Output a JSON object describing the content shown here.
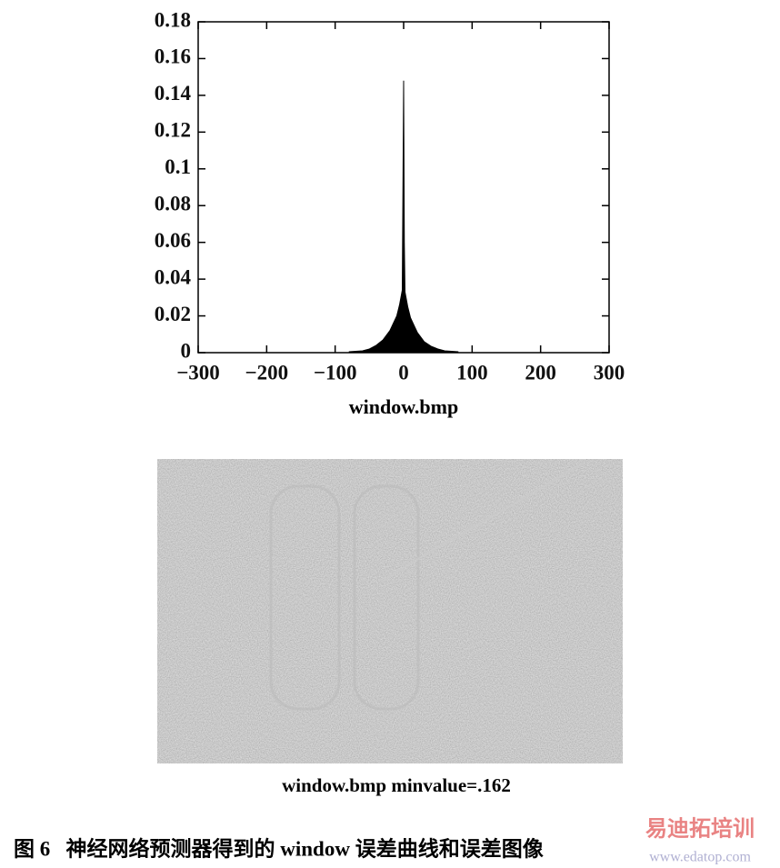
{
  "chart_data": {
    "type": "area",
    "color": "#000000",
    "x_label": "window.bmp",
    "x": [
      -80,
      -60,
      -50,
      -40,
      -30,
      -20,
      -15,
      -10,
      -8,
      -6,
      -4,
      -2,
      -1,
      0,
      1,
      2,
      4,
      6,
      8,
      10,
      15,
      20,
      30,
      40,
      50,
      60,
      80
    ],
    "values": [
      0.0005,
      0.001,
      0.002,
      0.004,
      0.007,
      0.012,
      0.016,
      0.02,
      0.023,
      0.026,
      0.03,
      0.034,
      0.09,
      0.148,
      0.06,
      0.033,
      0.029,
      0.025,
      0.022,
      0.019,
      0.015,
      0.011,
      0.006,
      0.0035,
      0.002,
      0.001,
      0.0005
    ],
    "xlim": [
      -300,
      300
    ],
    "xticks": [
      {
        "value": -300,
        "label": "−300"
      },
      {
        "value": -200,
        "label": "−200"
      },
      {
        "value": -100,
        "label": "−100"
      },
      0,
      100,
      200,
      300
    ],
    "ylim": [
      0,
      0.18
    ],
    "yticks": [
      0,
      0.02,
      0.04,
      0.06,
      0.08,
      0.1,
      0.12,
      0.14,
      0.16,
      0.18
    ]
  },
  "image_caption": "window.bmp  minvalue=.162",
  "figure_caption": "图 6   神经网络预测器得到的 window 误差曲线和误差图像",
  "watermark": {
    "name": "易迪拓培训",
    "url": "www.edatop.com"
  }
}
